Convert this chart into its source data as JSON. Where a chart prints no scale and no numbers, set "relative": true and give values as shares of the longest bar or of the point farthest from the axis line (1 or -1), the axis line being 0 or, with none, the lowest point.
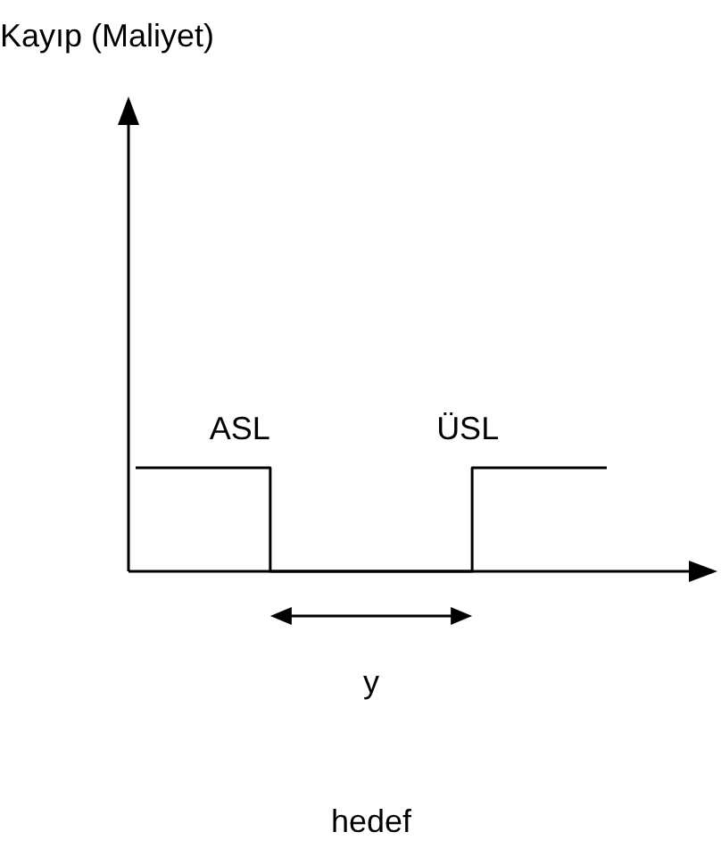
{
  "chart_data": {
    "type": "step",
    "relative": true,
    "categories": [
      null,
      null,
      null,
      null,
      null,
      null,
      null,
      null
    ],
    "values": [
      1,
      1,
      0,
      0,
      0,
      1,
      1,
      1
    ],
    "color": "#000000",
    "annotations": [
      "Kayıp (Maliyet)",
      "ASL",
      "ÜSL",
      "y",
      "hedef"
    ]
  }
}
